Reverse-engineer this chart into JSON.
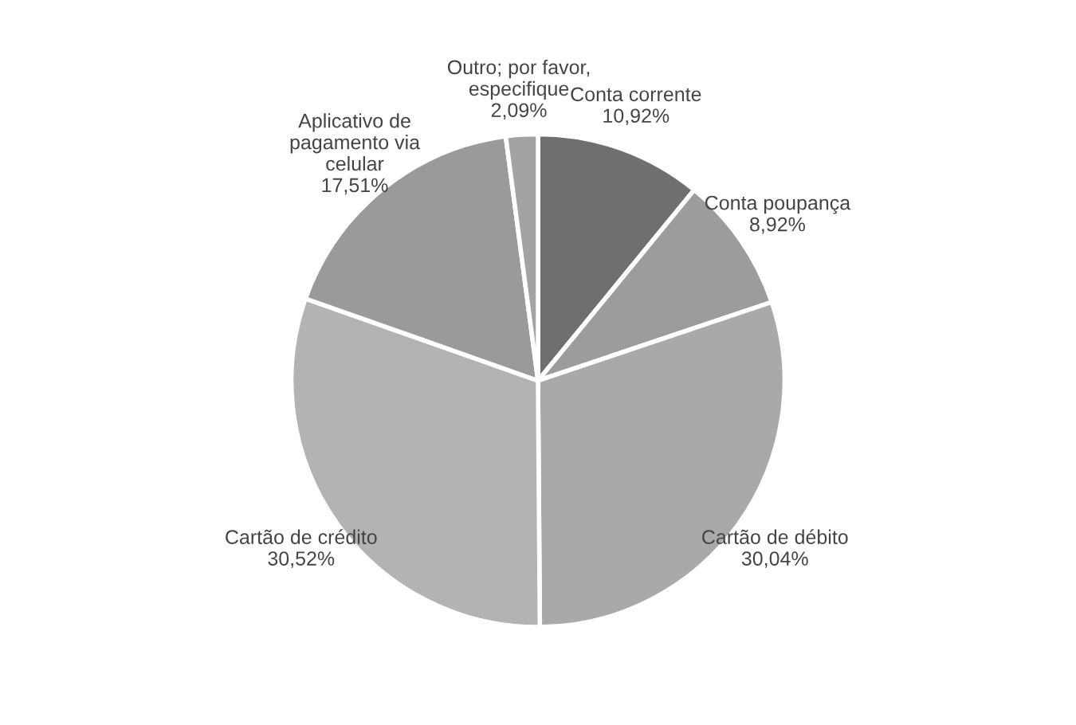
{
  "chart_data": {
    "type": "pie",
    "categories": [
      "Conta corrente",
      "Conta poupança",
      "Cartão de débito",
      "Cartão de crédito",
      "Aplicativo de\npagamento via\ncelular",
      "Outro; por favor,\nespecifique"
    ],
    "values": [
      10.92,
      8.92,
      30.04,
      30.52,
      17.51,
      2.09
    ],
    "value_labels": [
      "10,92%",
      "8,92%",
      "30,04%",
      "30,52%",
      "17,51%",
      "2,09%"
    ],
    "colors": [
      "#6f6f6f",
      "#9c9c9c",
      "#a9a9a9",
      "#b3b3b3",
      "#9a9a9a",
      "#a3a3a3"
    ],
    "legend": false
  }
}
